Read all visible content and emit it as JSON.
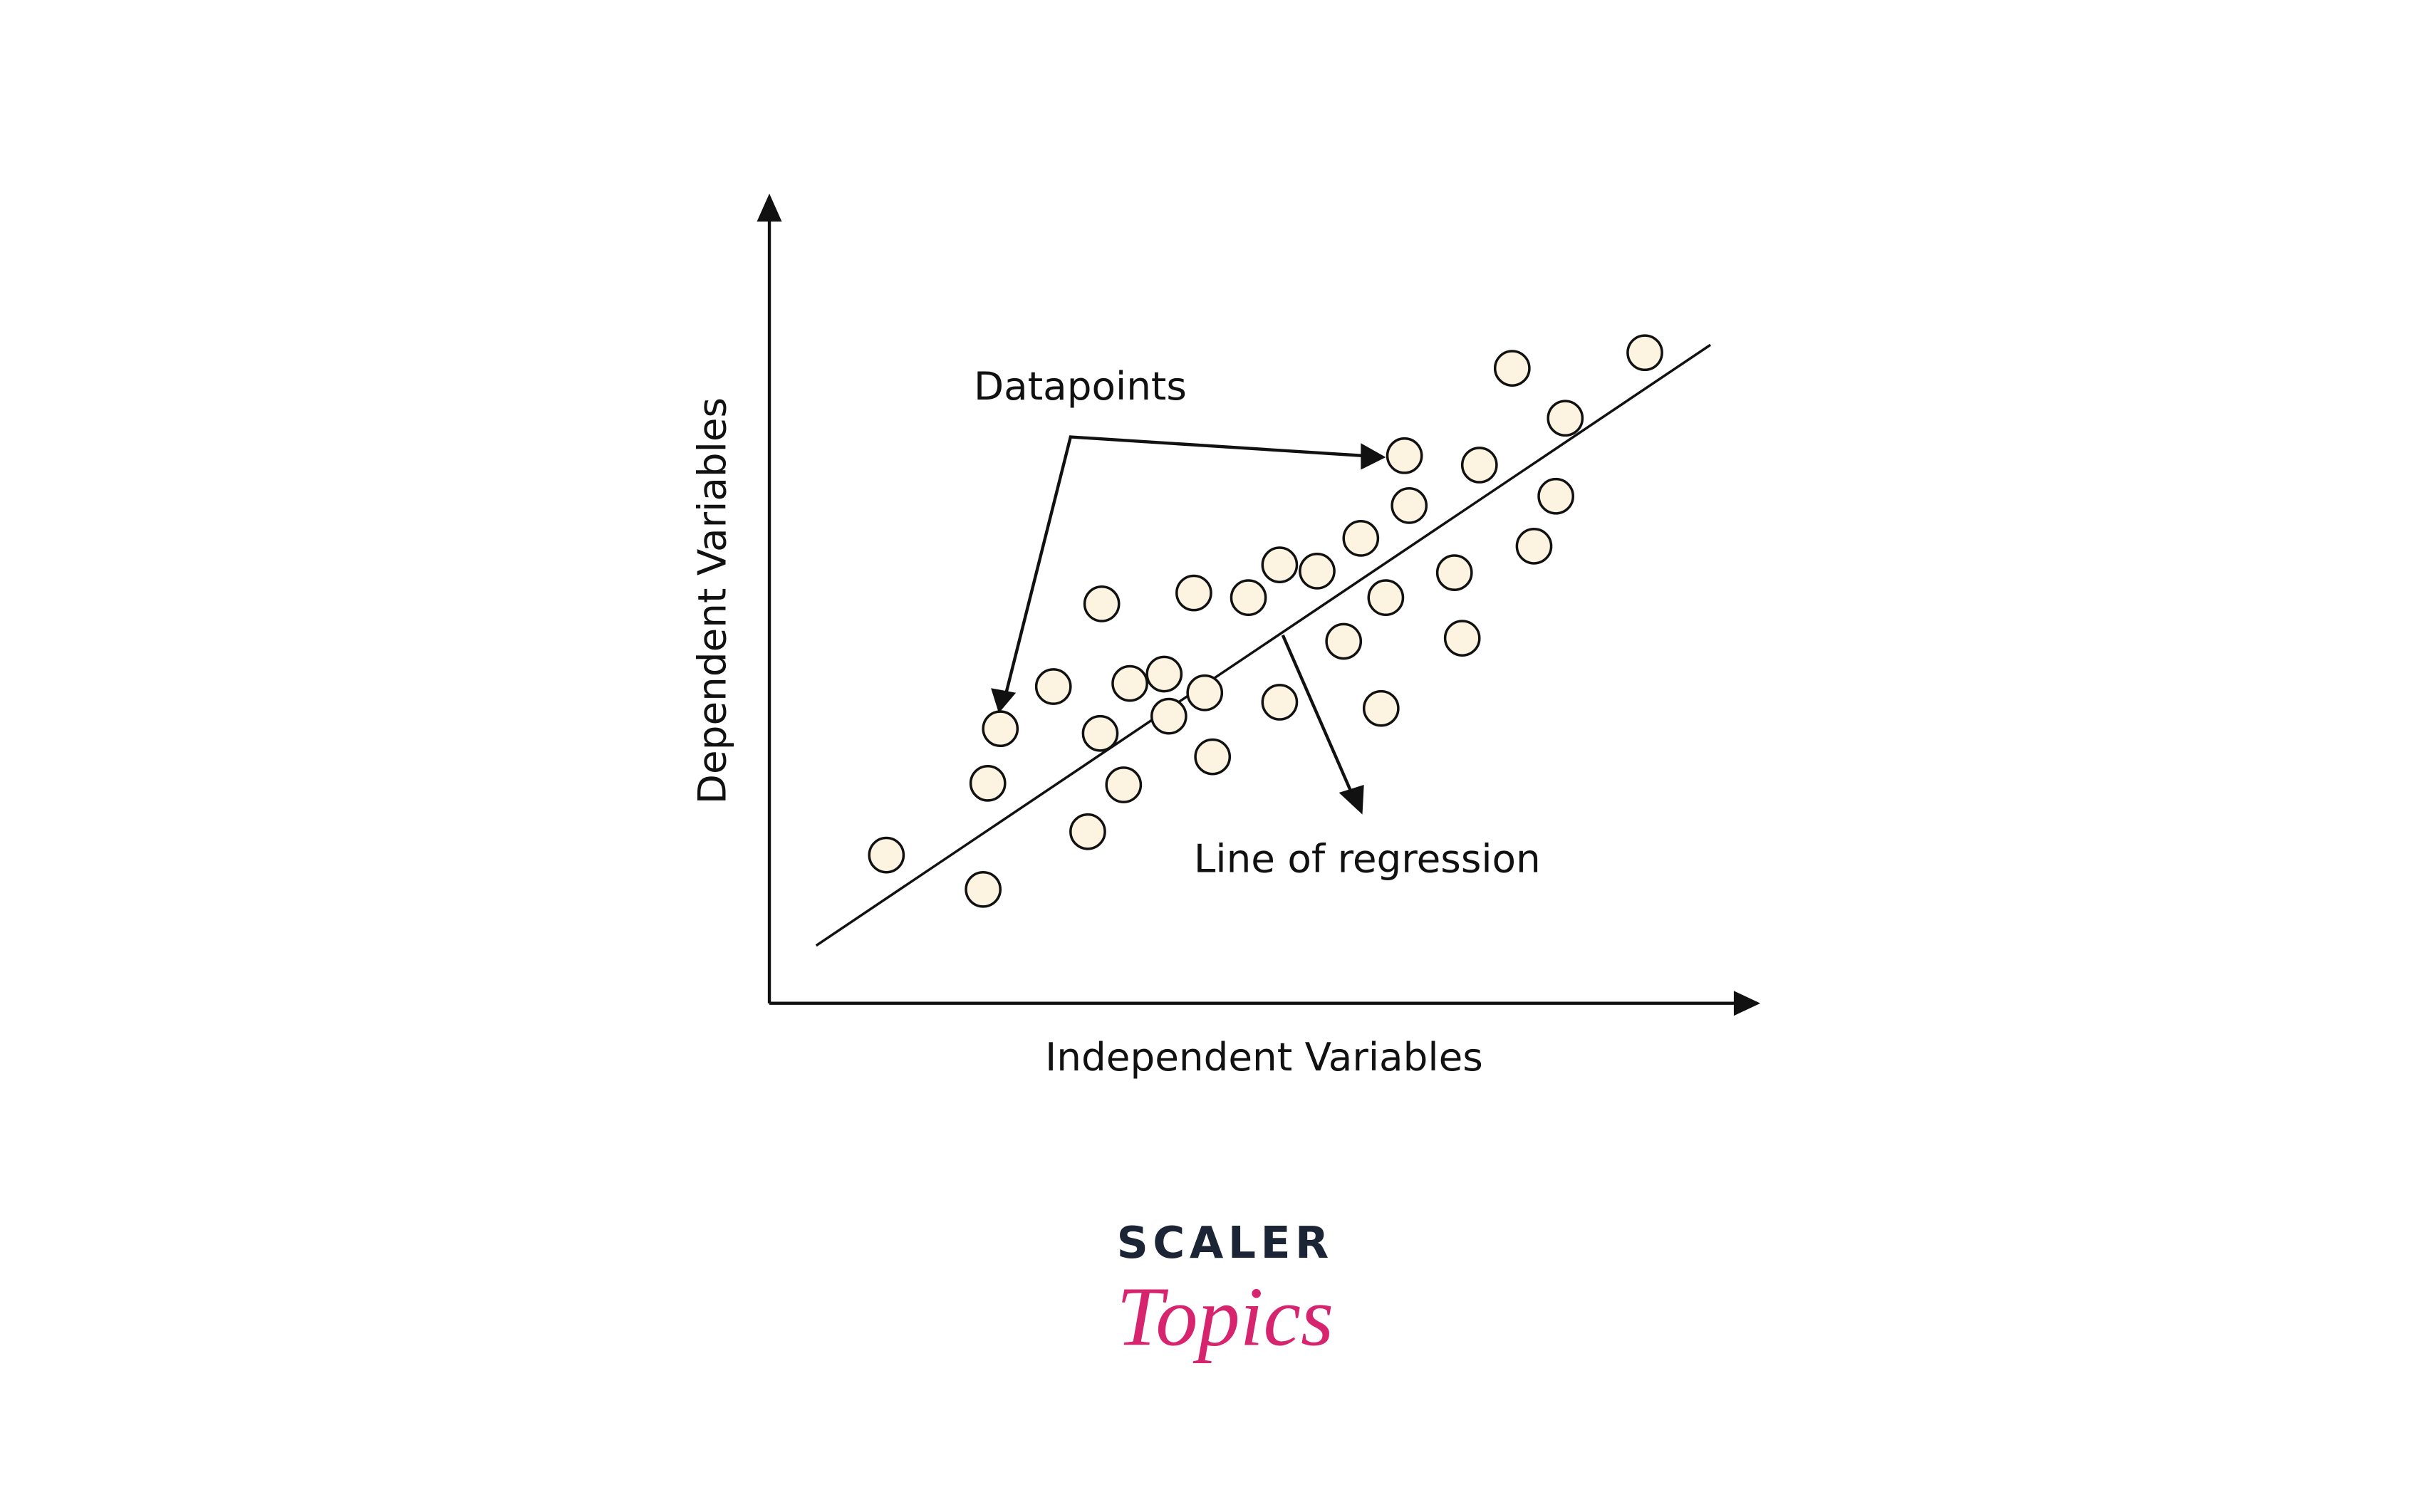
{
  "axes": {
    "x_label": "Independent Variables",
    "y_label": "Dependent Variables"
  },
  "annotations": {
    "datapoints": "Datapoints",
    "regression_line": "Line of regression"
  },
  "logo": {
    "brand": "SCALER",
    "product": "Topics"
  }
}
